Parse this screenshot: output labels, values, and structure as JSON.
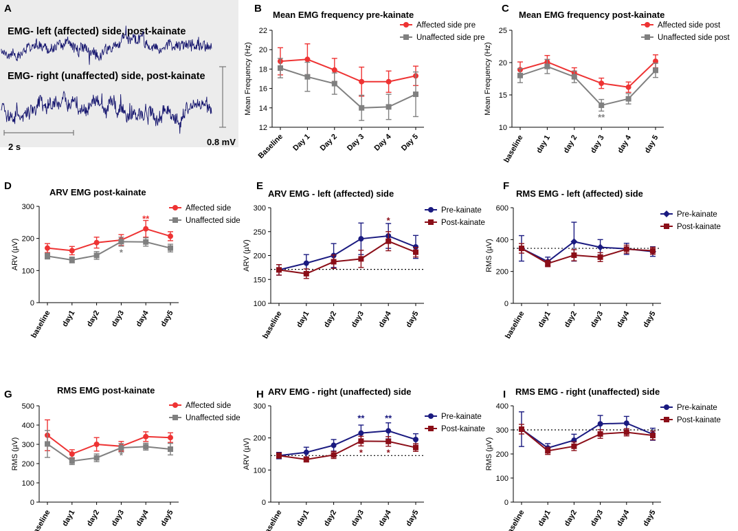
{
  "colors": {
    "red": "#ee3333",
    "gray": "#808080",
    "navy": "#1a1a80",
    "maroon": "#8b0e18",
    "trace": "#15156e",
    "panel_bg": "#ececec"
  },
  "panel_a": {
    "label": "A",
    "trace1_label": "EMG- left (affected) side, post-kainate",
    "trace2_label": "EMG- right (unaffected) side, post-kainate",
    "time_scale": "2 s",
    "volt_scale": "0.8 mV"
  },
  "chart_data": [
    {
      "id": "B",
      "label": "B",
      "type": "line",
      "title": "Mean EMG frequency pre-kainate",
      "ylabel": "Mean Frequency (Hz)",
      "xlabel": "",
      "ylim": [
        12,
        22
      ],
      "yticks": [
        12,
        14,
        16,
        18,
        20,
        22
      ],
      "categories": [
        "Baseline",
        "Day 1",
        "Day 2",
        "Day 3",
        "Day 4",
        "Day 5"
      ],
      "series": [
        {
          "name": "Affected side pre",
          "color": "red",
          "marker": "circle",
          "values": [
            18.8,
            19.0,
            17.9,
            16.7,
            16.7,
            17.3
          ],
          "errors": [
            1.4,
            1.6,
            1.2,
            1.5,
            1.1,
            1.0
          ]
        },
        {
          "name": "Unaffected side pre",
          "color": "gray",
          "marker": "square",
          "values": [
            18.1,
            17.2,
            16.5,
            14.0,
            14.1,
            15.4
          ],
          "errors": [
            1.0,
            1.5,
            1.1,
            1.3,
            1.3,
            2.3
          ]
        }
      ],
      "annotations": []
    },
    {
      "id": "C",
      "label": "C",
      "type": "line",
      "title": "Mean EMG frequency post-kainate",
      "ylabel": "Mean Frequency (Hz)",
      "xlabel": "",
      "ylim": [
        10,
        25
      ],
      "yticks": [
        10,
        15,
        20,
        25
      ],
      "categories": [
        "baseline",
        "day 1",
        "day 2",
        "day 3",
        "day 4",
        "day 5"
      ],
      "series": [
        {
          "name": "Affected side post",
          "color": "red",
          "marker": "circle",
          "values": [
            18.9,
            20.1,
            18.4,
            16.8,
            16.2,
            20.2
          ],
          "errors": [
            1.2,
            1.0,
            0.8,
            0.8,
            0.8,
            1.0
          ]
        },
        {
          "name": "Unaffected side post",
          "color": "gray",
          "marker": "square",
          "values": [
            18.0,
            19.4,
            17.8,
            13.4,
            14.4,
            18.8
          ],
          "errors": [
            1.1,
            1.1,
            0.9,
            0.9,
            0.8,
            1.1
          ]
        }
      ],
      "annotations": [
        {
          "text": "**",
          "x": 3,
          "y": 11.6,
          "color": "gray"
        }
      ]
    },
    {
      "id": "D",
      "label": "D",
      "type": "line",
      "title": "ARV EMG post-kainate",
      "ylabel": "ARV (µV)",
      "xlabel": "",
      "ylim": [
        0,
        300
      ],
      "yticks": [
        0,
        100,
        200,
        300
      ],
      "categories": [
        "baseline",
        "day1",
        "day2",
        "day3",
        "day4",
        "day5"
      ],
      "series": [
        {
          "name": "Affected side",
          "color": "red",
          "marker": "circle",
          "values": [
            170,
            162,
            187,
            195,
            230,
            207
          ],
          "errors": [
            14,
            13,
            17,
            17,
            26,
            14
          ]
        },
        {
          "name": "Unaffected side",
          "color": "gray",
          "marker": "square",
          "values": [
            145,
            133,
            147,
            190,
            189,
            170
          ],
          "errors": [
            9,
            9,
            12,
            14,
            13,
            12
          ]
        }
      ],
      "annotations": [
        {
          "text": "**",
          "x": 4,
          "y": 262,
          "color": "red"
        },
        {
          "text": "*",
          "x": 3,
          "y": 158,
          "color": "gray"
        }
      ]
    },
    {
      "id": "E",
      "label": "E",
      "type": "line",
      "title": "ARV EMG - left (affected) side",
      "ylabel": "ARV (µV)",
      "xlabel": "",
      "ylim": [
        100,
        300
      ],
      "yticks": [
        100,
        150,
        200,
        250,
        300
      ],
      "refline": 171,
      "categories": [
        "baseline",
        "day1",
        "day2",
        "day3",
        "day4",
        "day5"
      ],
      "series": [
        {
          "name": "Pre-kainate",
          "color": "navy",
          "marker": "circle",
          "values": [
            170,
            184,
            200,
            235,
            241,
            218
          ],
          "errors": [
            11,
            18,
            25,
            33,
            26,
            24
          ]
        },
        {
          "name": "Post-kainate",
          "color": "maroon",
          "marker": "square",
          "values": [
            170,
            162,
            187,
            193,
            230,
            207
          ],
          "errors": [
            11,
            10,
            14,
            18,
            20,
            10
          ]
        }
      ],
      "annotations": [
        {
          "text": "*",
          "x": 4,
          "y": 274,
          "color": "maroon"
        }
      ]
    },
    {
      "id": "F",
      "label": "F",
      "type": "line",
      "title": "RMS EMG - left (affected) side",
      "ylabel": "RMS (µV)",
      "xlabel": "",
      "ylim": [
        0,
        600
      ],
      "yticks": [
        0,
        200,
        400,
        600
      ],
      "refline": 345,
      "categories": [
        "baseline",
        "day1",
        "day2",
        "day3",
        "day4",
        "day5"
      ],
      "series": [
        {
          "name": "Pre-kainate",
          "color": "navy",
          "marker": "diamond",
          "values": [
            345,
            262,
            387,
            352,
            342,
            325
          ],
          "errors": [
            80,
            28,
            122,
            48,
            35,
            30
          ]
        },
        {
          "name": "Post-kainate",
          "color": "maroon",
          "marker": "square",
          "values": [
            345,
            250,
            302,
            290,
            340,
            330
          ],
          "errors": [
            30,
            20,
            35,
            28,
            25,
            22
          ]
        }
      ],
      "annotations": []
    },
    {
      "id": "G",
      "label": "G",
      "type": "line",
      "title": "RMS EMG post-kainate",
      "ylabel": "RMS (µV)",
      "xlabel": "",
      "ylim": [
        0,
        500
      ],
      "yticks": [
        0,
        100,
        200,
        300,
        400,
        500
      ],
      "categories": [
        "baseline",
        "day1",
        "day2",
        "day3",
        "day4",
        "day5"
      ],
      "series": [
        {
          "name": "Affected side",
          "color": "red",
          "marker": "circle",
          "values": [
            347,
            250,
            300,
            290,
            340,
            335
          ],
          "errors": [
            80,
            22,
            35,
            25,
            25,
            25
          ]
        },
        {
          "name": "Unaffected side",
          "color": "gray",
          "marker": "square",
          "values": [
            302,
            213,
            230,
            282,
            288,
            275
          ],
          "errors": [
            70,
            18,
            20,
            22,
            18,
            30
          ]
        }
      ],
      "annotations": [
        {
          "text": "*",
          "x": 3,
          "y": 245,
          "color": "gray"
        }
      ]
    },
    {
      "id": "H",
      "label": "H",
      "type": "line",
      "title": "ARV EMG - right (unaffected) side",
      "ylabel": "ARV (µV)",
      "xlabel": "",
      "ylim": [
        0,
        300
      ],
      "yticks": [
        0,
        100,
        200,
        300
      ],
      "refline": 145,
      "categories": [
        "baseline",
        "day1",
        "day2",
        "day3",
        "day4",
        "day5"
      ],
      "series": [
        {
          "name": "Pre-kainate",
          "color": "navy",
          "marker": "circle",
          "values": [
            145,
            155,
            177,
            215,
            222,
            195
          ],
          "errors": [
            10,
            16,
            18,
            25,
            25,
            18
          ]
        },
        {
          "name": "Post-kainate",
          "color": "maroon",
          "marker": "square",
          "values": [
            145,
            133,
            147,
            190,
            189,
            170
          ],
          "errors": [
            8,
            8,
            11,
            15,
            15,
            12
          ]
        }
      ],
      "annotations": [
        {
          "text": "**",
          "x": 3,
          "y": 262,
          "color": "navy"
        },
        {
          "text": "**",
          "x": 4,
          "y": 262,
          "color": "navy"
        },
        {
          "text": "*",
          "x": 3,
          "y": 155,
          "color": "maroon"
        },
        {
          "text": "*",
          "x": 4,
          "y": 155,
          "color": "maroon"
        }
      ]
    },
    {
      "id": "I",
      "label": "I",
      "type": "line",
      "title": "RMS EMG - right (unaffected) side",
      "ylabel": "RMS (µV)",
      "xlabel": "",
      "ylim": [
        0,
        400
      ],
      "yticks": [
        0,
        100,
        200,
        300,
        400
      ],
      "refline": 300,
      "categories": [
        "baseline",
        "day1",
        "day2",
        "day3",
        "day4",
        "day5"
      ],
      "series": [
        {
          "name": "Pre-kainate",
          "color": "navy",
          "marker": "circle",
          "values": [
            303,
            225,
            257,
            325,
            328,
            282
          ],
          "errors": [
            72,
            18,
            25,
            35,
            28,
            25
          ]
        },
        {
          "name": "Post-kainate",
          "color": "maroon",
          "marker": "square",
          "values": [
            303,
            213,
            232,
            283,
            290,
            277
          ],
          "errors": [
            20,
            15,
            18,
            18,
            15,
            18
          ]
        }
      ],
      "annotations": []
    }
  ]
}
